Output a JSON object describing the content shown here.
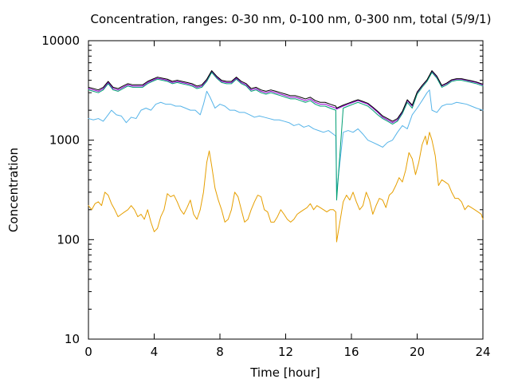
{
  "chart_data": {
    "type": "line",
    "title": "Concentration, ranges: 0-30 nm, 0-100 nm, 0-300 nm, total (5/9/1)",
    "xlabel": "Time [hour]",
    "ylabel": "Concentration",
    "xlim": [
      0,
      24
    ],
    "ylim": [
      10,
      10000
    ],
    "y_scale": "log",
    "x_ticks": [
      0,
      4,
      8,
      12,
      16,
      20,
      24
    ],
    "x_tick_labels": [
      "0",
      "4",
      "8",
      "12",
      "16",
      "20",
      "24"
    ],
    "y_ticks": [
      10,
      100,
      1000,
      10000
    ],
    "y_tick_labels": [
      "10",
      "100",
      "1000",
      "10000"
    ],
    "grid": false,
    "legend": "none",
    "series": [
      {
        "color": "#e69f00",
        "gap_after_x": 15.1,
        "x": [
          0,
          0.2,
          0.4,
          0.6,
          0.8,
          1.0,
          1.2,
          1.4,
          1.6,
          1.8,
          2.0,
          2.2,
          2.4,
          2.6,
          2.8,
          3.0,
          3.2,
          3.4,
          3.6,
          3.8,
          4.0,
          4.2,
          4.4,
          4.6,
          4.8,
          5.0,
          5.2,
          5.4,
          5.6,
          5.8,
          6.0,
          6.2,
          6.4,
          6.6,
          6.8,
          7.0,
          7.2,
          7.35,
          7.5,
          7.7,
          7.9,
          8.1,
          8.3,
          8.5,
          8.7,
          8.9,
          9.1,
          9.3,
          9.5,
          9.7,
          9.9,
          10.1,
          10.3,
          10.5,
          10.7,
          10.9,
          11.1,
          11.3,
          11.5,
          11.7,
          11.9,
          12.1,
          12.3,
          12.5,
          12.7,
          12.9,
          13.1,
          13.3,
          13.5,
          13.7,
          13.9,
          14.1,
          14.3,
          14.5,
          14.7,
          14.9,
          15.05,
          15.1,
          15.5,
          15.7,
          15.9,
          16.1,
          16.3,
          16.5,
          16.7,
          16.9,
          17.1,
          17.3,
          17.5,
          17.7,
          17.9,
          18.1,
          18.3,
          18.5,
          18.7,
          18.9,
          19.1,
          19.3,
          19.5,
          19.7,
          19.9,
          20.1,
          20.3,
          20.5,
          20.6,
          20.75,
          20.9,
          21.1,
          21.3,
          21.5,
          21.7,
          21.9,
          22.1,
          22.3,
          22.5,
          22.7,
          22.9,
          23.1,
          23.3,
          23.5,
          23.7,
          23.9,
          24.0
        ],
        "values": [
          220,
          200,
          230,
          240,
          220,
          300,
          280,
          230,
          200,
          170,
          180,
          190,
          200,
          220,
          200,
          170,
          180,
          160,
          200,
          150,
          120,
          130,
          170,
          200,
          290,
          270,
          280,
          240,
          200,
          180,
          210,
          250,
          180,
          160,
          200,
          300,
          600,
          780,
          550,
          330,
          250,
          200,
          150,
          160,
          200,
          300,
          270,
          200,
          150,
          160,
          200,
          240,
          280,
          270,
          200,
          190,
          150,
          150,
          170,
          200,
          180,
          160,
          150,
          160,
          180,
          190,
          200,
          210,
          230,
          200,
          220,
          210,
          200,
          190,
          200,
          200,
          190,
          95,
          240,
          280,
          250,
          300,
          240,
          200,
          220,
          300,
          250,
          180,
          220,
          260,
          250,
          210,
          280,
          300,
          350,
          420,
          380,
          500,
          750,
          650,
          450,
          600,
          900,
          1100,
          900,
          1200,
          1000,
          700,
          350,
          400,
          380,
          360,
          300,
          260,
          260,
          240,
          200,
          220,
          210,
          200,
          190,
          180,
          160
        ],
        "style": "thin line"
      },
      {
        "color": "#56b4e9",
        "gap_after_x": 15.1,
        "x": [
          0,
          0.3,
          0.6,
          0.9,
          1.2,
          1.4,
          1.7,
          2.0,
          2.3,
          2.6,
          2.9,
          3.2,
          3.5,
          3.8,
          4.1,
          4.4,
          4.7,
          5.0,
          5.3,
          5.6,
          5.9,
          6.2,
          6.5,
          6.8,
          7.0,
          7.2,
          7.4,
          7.7,
          8.0,
          8.3,
          8.6,
          8.9,
          9.2,
          9.5,
          9.8,
          10.1,
          10.4,
          10.7,
          11.0,
          11.3,
          11.6,
          11.9,
          12.2,
          12.5,
          12.8,
          13.1,
          13.4,
          13.7,
          14.0,
          14.3,
          14.6,
          14.9,
          15.05,
          15.1,
          15.5,
          15.8,
          16.1,
          16.4,
          16.7,
          17.0,
          17.3,
          17.6,
          17.9,
          18.2,
          18.5,
          18.8,
          19.1,
          19.4,
          19.7,
          20.0,
          20.3,
          20.6,
          20.75,
          20.9,
          21.2,
          21.5,
          21.8,
          22.1,
          22.4,
          22.7,
          23.0,
          23.3,
          23.6,
          24.0
        ],
        "values": [
          1650,
          1600,
          1650,
          1550,
          1800,
          2000,
          1800,
          1750,
          1500,
          1700,
          1650,
          2000,
          2100,
          2000,
          2300,
          2400,
          2300,
          2300,
          2200,
          2200,
          2100,
          2000,
          2000,
          1800,
          2300,
          3100,
          2700,
          2100,
          2300,
          2200,
          2000,
          2000,
          1900,
          1900,
          1800,
          1700,
          1750,
          1700,
          1650,
          1600,
          1600,
          1550,
          1500,
          1400,
          1450,
          1350,
          1400,
          1300,
          1250,
          1200,
          1250,
          1150,
          1100,
          300,
          1200,
          1250,
          1200,
          1300,
          1150,
          1000,
          950,
          900,
          850,
          950,
          1000,
          1200,
          1400,
          1300,
          1800,
          2100,
          2500,
          3000,
          3200,
          2000,
          1900,
          2200,
          2300,
          2300,
          2400,
          2350,
          2300,
          2200,
          2100,
          2000
        ],
        "style": "thin line"
      },
      {
        "color": "#9400d3",
        "gap_after_x": 15.1,
        "x": [
          0,
          0.3,
          0.6,
          0.9,
          1.2,
          1.5,
          1.8,
          2.1,
          2.4,
          2.7,
          3.0,
          3.3,
          3.6,
          3.9,
          4.2,
          4.5,
          4.8,
          5.1,
          5.4,
          5.7,
          6.0,
          6.3,
          6.6,
          6.9,
          7.2,
          7.5,
          7.8,
          8.1,
          8.4,
          8.7,
          9.0,
          9.3,
          9.6,
          9.9,
          10.2,
          10.5,
          10.8,
          11.1,
          11.4,
          11.7,
          12.0,
          12.3,
          12.6,
          12.9,
          13.2,
          13.5,
          13.8,
          14.1,
          14.4,
          14.7,
          15.05,
          15.1,
          15.5,
          15.8,
          16.1,
          16.4,
          16.7,
          17.0,
          17.3,
          17.6,
          17.9,
          18.2,
          18.5,
          18.8,
          19.1,
          19.4,
          19.7,
          20.0,
          20.3,
          20.6,
          20.9,
          21.2,
          21.5,
          21.8,
          22.1,
          22.4,
          22.7,
          23.0,
          23.3,
          23.6,
          24.0
        ],
        "values": [
          3300,
          3200,
          3100,
          3300,
          3800,
          3300,
          3200,
          3400,
          3600,
          3500,
          3500,
          3500,
          3800,
          4000,
          4200,
          4100,
          4000,
          3800,
          3900,
          3800,
          3700,
          3600,
          3400,
          3500,
          4000,
          4900,
          4300,
          3900,
          3800,
          3800,
          4200,
          3800,
          3600,
          3200,
          3300,
          3100,
          3000,
          3100,
          3000,
          2900,
          2800,
          2700,
          2700,
          2600,
          2500,
          2600,
          2400,
          2300,
          2300,
          2200,
          2100,
          2050,
          2200,
          2300,
          2400,
          2500,
          2400,
          2300,
          2100,
          1900,
          1700,
          1600,
          1500,
          1600,
          1900,
          2500,
          2200,
          3000,
          3500,
          4000,
          4900,
          4300,
          3500,
          3700,
          4000,
          4100,
          4100,
          4000,
          3900,
          3800,
          3600
        ],
        "style": "thin line"
      },
      {
        "color": "#009e73",
        "gap_after_x": 15.1,
        "x": [
          0,
          0.3,
          0.6,
          0.9,
          1.2,
          1.5,
          1.8,
          2.1,
          2.4,
          2.7,
          3.0,
          3.3,
          3.6,
          3.9,
          4.2,
          4.5,
          4.8,
          5.1,
          5.4,
          5.7,
          6.0,
          6.3,
          6.6,
          6.9,
          7.2,
          7.5,
          7.8,
          8.1,
          8.4,
          8.7,
          9.0,
          9.3,
          9.6,
          9.9,
          10.2,
          10.5,
          10.8,
          11.1,
          11.4,
          11.7,
          12.0,
          12.3,
          12.6,
          12.9,
          13.2,
          13.5,
          13.8,
          14.1,
          14.4,
          14.7,
          15.05,
          15.1,
          15.5,
          15.8,
          16.1,
          16.4,
          16.7,
          17.0,
          17.3,
          17.6,
          17.9,
          18.2,
          18.5,
          18.8,
          19.1,
          19.4,
          19.7,
          20.0,
          20.3,
          20.6,
          20.9,
          21.2,
          21.5,
          21.8,
          22.1,
          22.4,
          22.7,
          23.0,
          23.3,
          23.6,
          24.0
        ],
        "values": [
          3200,
          3100,
          3000,
          3200,
          3700,
          3200,
          3100,
          3300,
          3500,
          3400,
          3400,
          3400,
          3700,
          3900,
          4100,
          4000,
          3900,
          3700,
          3800,
          3700,
          3600,
          3500,
          3300,
          3400,
          3900,
          4800,
          4200,
          3800,
          3700,
          3700,
          4100,
          3700,
          3500,
          3100,
          3200,
          3000,
          2900,
          3000,
          2900,
          2800,
          2700,
          2600,
          2600,
          2500,
          2400,
          2500,
          2300,
          2200,
          2200,
          2100,
          2000,
          250,
          2100,
          2200,
          2300,
          2400,
          2300,
          2200,
          2000,
          1800,
          1650,
          1550,
          1450,
          1550,
          1850,
          2400,
          2100,
          2900,
          3400,
          3900,
          4800,
          4200,
          3400,
          3600,
          3900,
          4000,
          4000,
          3900,
          3800,
          3700,
          3500
        ],
        "style": "thin line"
      },
      {
        "color": "#000000",
        "gap_after_x": 15.1,
        "x": [
          0,
          0.3,
          0.6,
          0.9,
          1.2,
          1.5,
          1.8,
          2.1,
          2.4,
          2.7,
          3.0,
          3.3,
          3.6,
          3.9,
          4.2,
          4.5,
          4.8,
          5.1,
          5.4,
          5.7,
          6.0,
          6.3,
          6.6,
          6.9,
          7.2,
          7.5,
          7.8,
          8.1,
          8.4,
          8.7,
          9.0,
          9.3,
          9.6,
          9.9,
          10.2,
          10.5,
          10.8,
          11.1,
          11.4,
          11.7,
          12.0,
          12.3,
          12.6,
          12.9,
          13.2,
          13.5,
          13.8,
          14.1,
          14.4,
          14.7,
          15.05,
          15.1,
          15.5,
          15.8,
          16.1,
          16.4,
          16.7,
          17.0,
          17.3,
          17.6,
          17.9,
          18.2,
          18.5,
          18.8,
          19.1,
          19.4,
          19.7,
          20.0,
          20.3,
          20.6,
          20.9,
          21.2,
          21.5,
          21.8,
          22.1,
          22.4,
          22.7,
          23.0,
          23.3,
          23.6,
          24.0
        ],
        "values": [
          3400,
          3300,
          3200,
          3400,
          3900,
          3400,
          3300,
          3500,
          3700,
          3600,
          3600,
          3600,
          3900,
          4100,
          4300,
          4200,
          4100,
          3900,
          4000,
          3900,
          3800,
          3700,
          3500,
          3600,
          4100,
          5000,
          4400,
          4000,
          3900,
          3900,
          4300,
          3900,
          3700,
          3300,
          3400,
          3200,
          3100,
          3200,
          3100,
          3000,
          2900,
          2800,
          2800,
          2700,
          2600,
          2700,
          2500,
          2400,
          2400,
          2300,
          2200,
          2100,
          2250,
          2350,
          2450,
          2550,
          2450,
          2350,
          2150,
          1950,
          1750,
          1650,
          1550,
          1650,
          1950,
          2550,
          2250,
          3050,
          3550,
          4050,
          5000,
          4400,
          3550,
          3750,
          4050,
          4150,
          4150,
          4050,
          3950,
          3850,
          3650
        ],
        "style": "thin line"
      }
    ]
  }
}
